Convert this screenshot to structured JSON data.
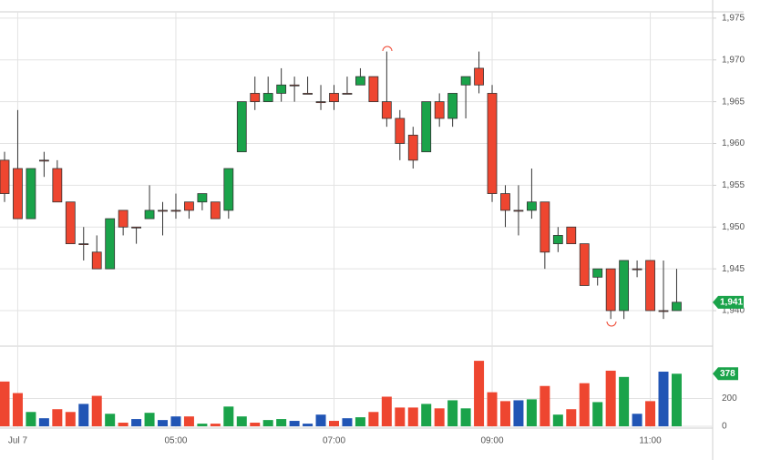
{
  "chart_data": {
    "type": "candlestick",
    "categories": [
      null,
      "Jul 7",
      null,
      null,
      null,
      null,
      null,
      null,
      null,
      null,
      null,
      null,
      null,
      "05:00",
      null,
      null,
      null,
      null,
      null,
      null,
      null,
      null,
      null,
      null,
      null,
      "07:00",
      null,
      null,
      null,
      null,
      null,
      null,
      null,
      null,
      null,
      null,
      null,
      "09:00",
      null,
      null,
      null,
      null,
      null,
      null,
      null,
      null,
      null,
      null,
      null,
      "11:00",
      null,
      null
    ],
    "open": [
      1958,
      1957,
      1951,
      1958,
      1957,
      1953,
      1948,
      1947,
      1945,
      1952,
      1950,
      1951,
      1952,
      1952,
      1953,
      1953,
      1953,
      1952,
      1959,
      1966,
      1965,
      1966,
      1967,
      1966,
      1965,
      1966,
      1966,
      1967,
      1968,
      1965,
      1963,
      1961,
      1959,
      1965,
      1963,
      1967,
      1969,
      1966,
      1954,
      1952,
      1952,
      1953,
      1948,
      1950,
      1948,
      1944,
      1945,
      1940,
      1945,
      1946,
      1940,
      1940
    ],
    "high": [
      1959,
      1964,
      1957,
      1959,
      1958,
      1953,
      1950,
      1949,
      1951,
      1952,
      1950,
      1955,
      1953,
      1954,
      1953,
      1954,
      1953,
      1957,
      1965,
      1968,
      1968,
      1969,
      1968,
      1968,
      1967,
      1967,
      1968,
      1969,
      1968,
      1971,
      1964,
      1962,
      1965,
      1966,
      1966,
      1968,
      1971,
      1967,
      1955,
      1955,
      1957,
      1953,
      1950,
      1950,
      1948,
      1945,
      1945,
      1946,
      1946,
      1946,
      1946,
      1945
    ],
    "low": [
      1953,
      1951,
      1951,
      1956,
      1953,
      1948,
      1946,
      1945,
      1945,
      1949,
      1948,
      1951,
      1949,
      1951,
      1951,
      1952,
      1951,
      1951,
      1959,
      1964,
      1965,
      1965,
      1965,
      1966,
      1964,
      1964,
      1966,
      1967,
      1965,
      1962,
      1958,
      1957,
      1959,
      1962,
      1962,
      1963,
      1966,
      1953,
      1950,
      1949,
      1951,
      1945,
      1947,
      1948,
      1943,
      1943,
      1939,
      1939,
      1944,
      1940,
      1939,
      1940
    ],
    "close": [
      1954,
      1951,
      1957,
      1958,
      1953,
      1948,
      1948,
      1945,
      1951,
      1950,
      1950,
      1952,
      1952,
      1952,
      1952,
      1954,
      1951,
      1957,
      1965,
      1965,
      1966,
      1967,
      1967,
      1966,
      1965,
      1965,
      1966,
      1968,
      1965,
      1963,
      1960,
      1958,
      1965,
      1963,
      1966,
      1968,
      1967,
      1954,
      1952,
      1952,
      1953,
      1947,
      1949,
      1948,
      1943,
      1945,
      1940,
      1946,
      1945,
      1940,
      1940,
      1941
    ],
    "volume": [
      322,
      239,
      103,
      58,
      123,
      103,
      161,
      219,
      90,
      26,
      52,
      97,
      45,
      71,
      71,
      19,
      19,
      142,
      71,
      26,
      45,
      52,
      39,
      19,
      84,
      39,
      58,
      65,
      103,
      213,
      135,
      135,
      161,
      129,
      187,
      129,
      471,
      245,
      181,
      187,
      194,
      290,
      84,
      123,
      310,
      174,
      400,
      355,
      90,
      181,
      393,
      378
    ],
    "up_color": "#1aa34a",
    "down_color": "#ee4630",
    "flat_color": "#2155b5",
    "ylim": [
      1935.75,
      1975.75
    ],
    "yticks": [
      {
        "value": 1940,
        "label": "1,940"
      },
      {
        "value": 1945,
        "label": "1,945"
      },
      {
        "value": 1950,
        "label": "1,950"
      },
      {
        "value": 1955,
        "label": "1,955"
      },
      {
        "value": 1960,
        "label": "1,960"
      },
      {
        "value": 1965,
        "label": "1,965"
      },
      {
        "value": 1970,
        "label": "1,970"
      },
      {
        "value": 1975,
        "label": "1,975"
      }
    ],
    "y2lim": [
      0,
      570
    ],
    "y2ticks": [
      0,
      200
    ],
    "last_close_label": "1,941",
    "grid": true
  }
}
